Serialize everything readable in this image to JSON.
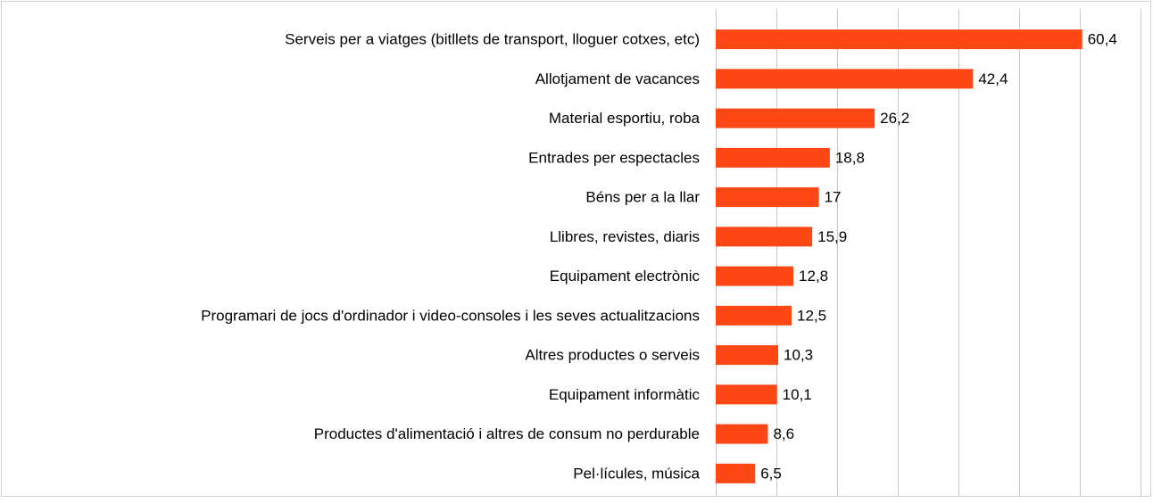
{
  "chart_data": {
    "type": "barh",
    "categories": [
      "Serveis per a viatges (bitllets de transport, lloguer cotxes, etc)",
      "Allotjament de vacances",
      "Material esportiu, roba",
      "Entrades per espectacles",
      "Béns per a la llar",
      "Llibres, revistes, diaris",
      "Equipament electrònic",
      "Programari de jocs d'ordinador i video-consoles i les seves actualitzacions",
      "Altres productes o serveis",
      "Equipament informàtic",
      "Productes d'alimentació i altres de consum no perdurable",
      "Pel·lícules, música"
    ],
    "values": [
      60.4,
      42.4,
      26.2,
      18.8,
      17,
      15.9,
      12.8,
      12.5,
      10.3,
      10.1,
      8.6,
      6.5
    ],
    "value_labels": [
      "60,4",
      "42,4",
      "26,2",
      "18,8",
      "17",
      "15,9",
      "12,8",
      "12,5",
      "10,3",
      "10,1",
      "8,6",
      "6,5"
    ],
    "color": "#fd4714",
    "xlim": [
      0,
      70
    ],
    "xticks": [
      0,
      10,
      20,
      30,
      40,
      50,
      60,
      70
    ],
    "grid": true
  }
}
